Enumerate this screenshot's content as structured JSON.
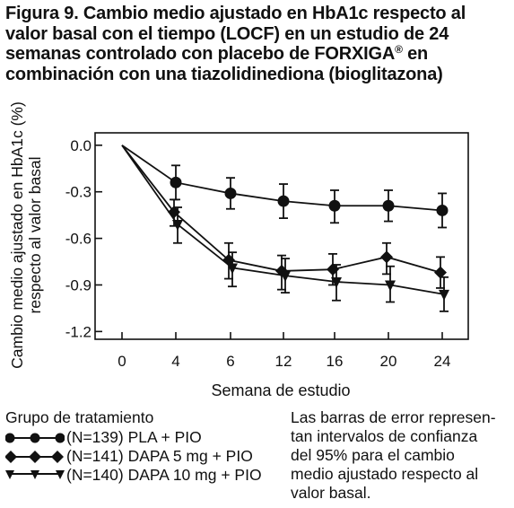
{
  "title": {
    "lines": [
      "Figura 9. Cambio medio ajustado en HbA1c respecto al",
      "valor basal con el tiempo (LOCF) en un estudio de 24",
      "semanas controlado con placebo de FORXIGA",
      "combinación con una tiazolidinediona (bioglitazona)"
    ],
    "trademark": "®",
    "line3_suffix": " en"
  },
  "chart_data": {
    "type": "line",
    "xlabel": "Semana de estudio",
    "ylabel_lines": [
      "Cambio medio ajustado en HbA1c (%)",
      "respecto al valor basal"
    ],
    "x_ticks": [
      "0",
      "4",
      "6",
      "12",
      "16",
      "20",
      "24"
    ],
    "y_ticks": [
      "0.0",
      "-0.3",
      "-0.6",
      "-0.9",
      "-1.2"
    ],
    "y_tick_values": [
      0.0,
      -0.3,
      -0.6,
      -0.9,
      -1.2
    ],
    "ylim": [
      -1.25,
      0.08
    ],
    "grid": false,
    "legend_position": "bottom-left",
    "series": [
      {
        "name": "(N=139) PLA + PIO",
        "marker": "circle",
        "values": [
          0.0,
          -0.24,
          -0.31,
          -0.36,
          -0.39,
          -0.39,
          -0.42
        ],
        "lower": [
          0.0,
          -0.35,
          -0.41,
          -0.47,
          -0.5,
          -0.49,
          -0.53
        ],
        "upper": [
          0.0,
          -0.13,
          -0.21,
          -0.25,
          -0.29,
          -0.29,
          -0.31
        ]
      },
      {
        "name": "(N=141) DAPA 5 mg + PIO",
        "marker": "diamond",
        "values": [
          0.0,
          -0.43,
          -0.74,
          -0.81,
          -0.8,
          -0.72,
          -0.82
        ],
        "lower": [
          0.0,
          -0.52,
          -0.86,
          -0.93,
          -0.9,
          -0.83,
          -0.92
        ],
        "upper": [
          0.0,
          -0.35,
          -0.63,
          -0.71,
          -0.7,
          -0.63,
          -0.72
        ]
      },
      {
        "name": "(N=140) DAPA 10 mg + PIO",
        "marker": "triangle-down",
        "values": [
          0.0,
          -0.51,
          -0.79,
          -0.84,
          -0.88,
          -0.9,
          -0.96
        ],
        "lower": [
          0.0,
          -0.63,
          -0.91,
          -0.95,
          -1.0,
          -1.01,
          -1.07
        ],
        "upper": [
          0.0,
          -0.4,
          -0.69,
          -0.73,
          -0.77,
          -0.78,
          -0.85
        ]
      }
    ]
  },
  "legend": {
    "title": "Grupo de tratamiento"
  },
  "note_lines": [
    "Las barras de error represen-",
    "tan intervalos de confianza",
    "del 95% para el cambio",
    "medio ajustado respecto al",
    "valor basal."
  ]
}
